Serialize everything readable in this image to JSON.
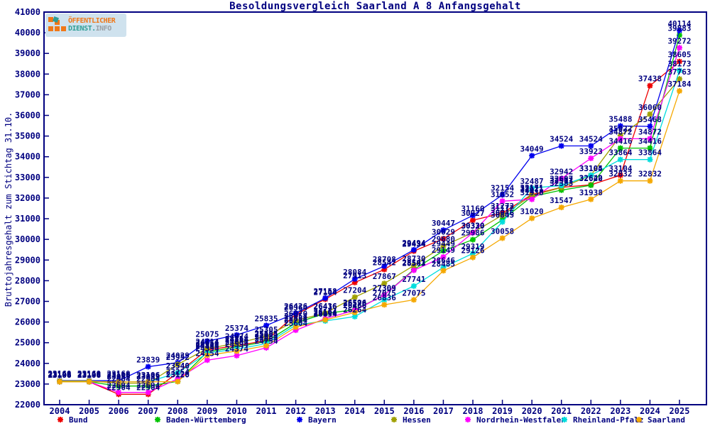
{
  "title": "Besoldungsvergleich Saarland A 8 Anfangsgehalt",
  "logo": {
    "line1": "ÖFFENTLICHER",
    "line2_strong": "DIENST.",
    "line2_muted": "INFO"
  },
  "y_axis": {
    "label": "Bruttojahresgehalt zum Stichtag 31.10.",
    "min": 22000,
    "max": 41000,
    "step": 1000
  },
  "colors": {
    "frame": "#000080",
    "tick_text": "#000080",
    "point_label": "#000080"
  },
  "chart_data": {
    "type": "line",
    "title": "Besoldungsvergleich Saarland A 8 Anfangsgehalt",
    "xlabel": "",
    "ylabel": "Bruttojahresgehalt zum Stichtag 31.10.",
    "ylim": [
      22000,
      41000
    ],
    "grid": false,
    "legend_position": "bottom",
    "point_labels": true,
    "x": [
      2004,
      2005,
      2006,
      2007,
      2008,
      2009,
      2010,
      2011,
      2012,
      2013,
      2014,
      2015,
      2016,
      2017,
      2018,
      2019,
      2020,
      2021,
      2022,
      2023,
      2024,
      2025
    ],
    "series": [
      {
        "name": "Bund",
        "color": "#ee0000",
        "values": [
          23106,
          23106,
          22504,
          22504,
          23540,
          24654,
          24854,
          25105,
          26364,
          27104,
          27913,
          28542,
          29434,
          30029,
          30927,
          31272,
          32171,
          32517,
          32642,
          33104,
          37438,
          38605
        ]
      },
      {
        "name": "Baden-Württemberg",
        "color": "#00c400",
        "values": [
          23106,
          23106,
          22904,
          22904,
          23126,
          24554,
          24794,
          25054,
          25954,
          26416,
          26596,
          27309,
          28541,
          29449,
          29986,
          30946,
          32071,
          32383,
          32620,
          34416,
          34416,
          39883
        ]
      },
      {
        "name": "Bayern",
        "color": "#0000ee",
        "values": [
          23160,
          23160,
          23160,
          23839,
          24039,
          25075,
          25374,
          25835,
          26426,
          27158,
          28084,
          28708,
          29494,
          30447,
          31160,
          32154,
          34049,
          34524,
          34524,
          35488,
          35468,
          40114
        ]
      },
      {
        "name": "Hessen",
        "color": "#a0a000",
        "values": [
          23148,
          23148,
          23033,
          23033,
          23952,
          24714,
          24974,
          25305,
          26070,
          26436,
          27204,
          27867,
          28730,
          29680,
          30330,
          31172,
          32121,
          32503,
          33105,
          35022,
          36060,
          37763
        ]
      },
      {
        "name": "Nordrhein-Westfalen",
        "color": "#ff00ff",
        "values": [
          23106,
          23106,
          22594,
          22594,
          23254,
          24154,
          24374,
          24754,
          25604,
          26164,
          26570,
          27309,
          28503,
          29149,
          30320,
          31852,
          31936,
          32942,
          33923,
          34872,
          34872,
          39272
        ]
      },
      {
        "name": "Rheinland-Pfalz",
        "color": "#00dddd",
        "values": [
          23106,
          23106,
          23106,
          23106,
          23540,
          24494,
          24694,
          24954,
          25854,
          26054,
          26264,
          27075,
          27741,
          28646,
          29319,
          30845,
          32487,
          32607,
          33104,
          33864,
          33864,
          38173
        ]
      },
      {
        "name": "Saarland",
        "color": "#f5a800",
        "values": [
          23106,
          23106,
          23106,
          23106,
          23120,
          24394,
          24594,
          24854,
          25754,
          26104,
          26466,
          26836,
          27075,
          28485,
          29126,
          30058,
          31020,
          31547,
          31938,
          32832,
          32832,
          37184
        ]
      }
    ]
  }
}
